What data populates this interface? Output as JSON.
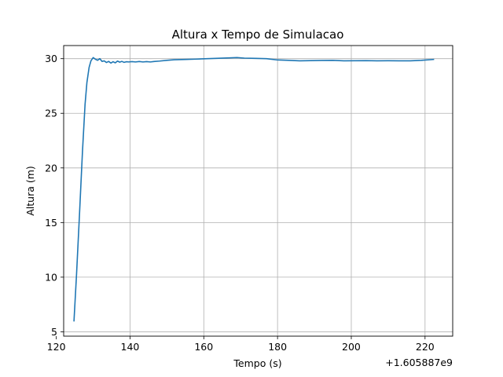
{
  "chart_data": {
    "type": "line",
    "title": "Altura x Tempo de Simulacao",
    "xlabel": "Tempo (s)",
    "ylabel": "Altura (m)",
    "x_offset_label": "+1.605887e9",
    "xlim": [
      122,
      227.5
    ],
    "ylim": [
      4.6,
      31.2
    ],
    "grid": true,
    "x_ticks": [
      120,
      140,
      160,
      180,
      200,
      220
    ],
    "x_tick_labels": [
      "120",
      "140",
      "160",
      "180",
      "200",
      "220"
    ],
    "y_ticks": [
      5,
      10,
      15,
      20,
      25,
      30
    ],
    "y_tick_labels": [
      "5",
      "10",
      "15",
      "20",
      "25",
      "30"
    ],
    "series": [
      {
        "color": "#1f77b4",
        "x": [
          124.8,
          125.5,
          126.3,
          127.1,
          127.8,
          128.3,
          128.9,
          129.4,
          130.0,
          130.6,
          131.2,
          131.8,
          132.4,
          133.0,
          133.6,
          134.2,
          134.8,
          135.4,
          136.0,
          136.6,
          137.2,
          137.8,
          138.4,
          139.0,
          139.6,
          140.5,
          141.5,
          142.5,
          143.5,
          144.5,
          145.5,
          146.5,
          148,
          150,
          152,
          155,
          158,
          161,
          164,
          167,
          169,
          171,
          174,
          177,
          180,
          183,
          186,
          189,
          192,
          195,
          198,
          201,
          204,
          207,
          210,
          213,
          216,
          219,
          222.3
        ],
        "y": [
          6.0,
          10.3,
          15.8,
          21.5,
          25.8,
          27.8,
          29.2,
          29.8,
          30.1,
          29.95,
          29.85,
          30.0,
          29.75,
          29.8,
          29.65,
          29.75,
          29.6,
          29.72,
          29.62,
          29.78,
          29.68,
          29.75,
          29.66,
          29.72,
          29.7,
          29.73,
          29.7,
          29.74,
          29.7,
          29.73,
          29.7,
          29.74,
          29.78,
          29.85,
          29.9,
          29.93,
          29.96,
          30.0,
          30.04,
          30.07,
          30.1,
          30.05,
          30.03,
          30.0,
          29.88,
          29.85,
          29.8,
          29.82,
          29.84,
          29.85,
          29.8,
          29.81,
          29.82,
          29.8,
          29.81,
          29.8,
          29.8,
          29.85,
          29.93
        ]
      }
    ]
  }
}
